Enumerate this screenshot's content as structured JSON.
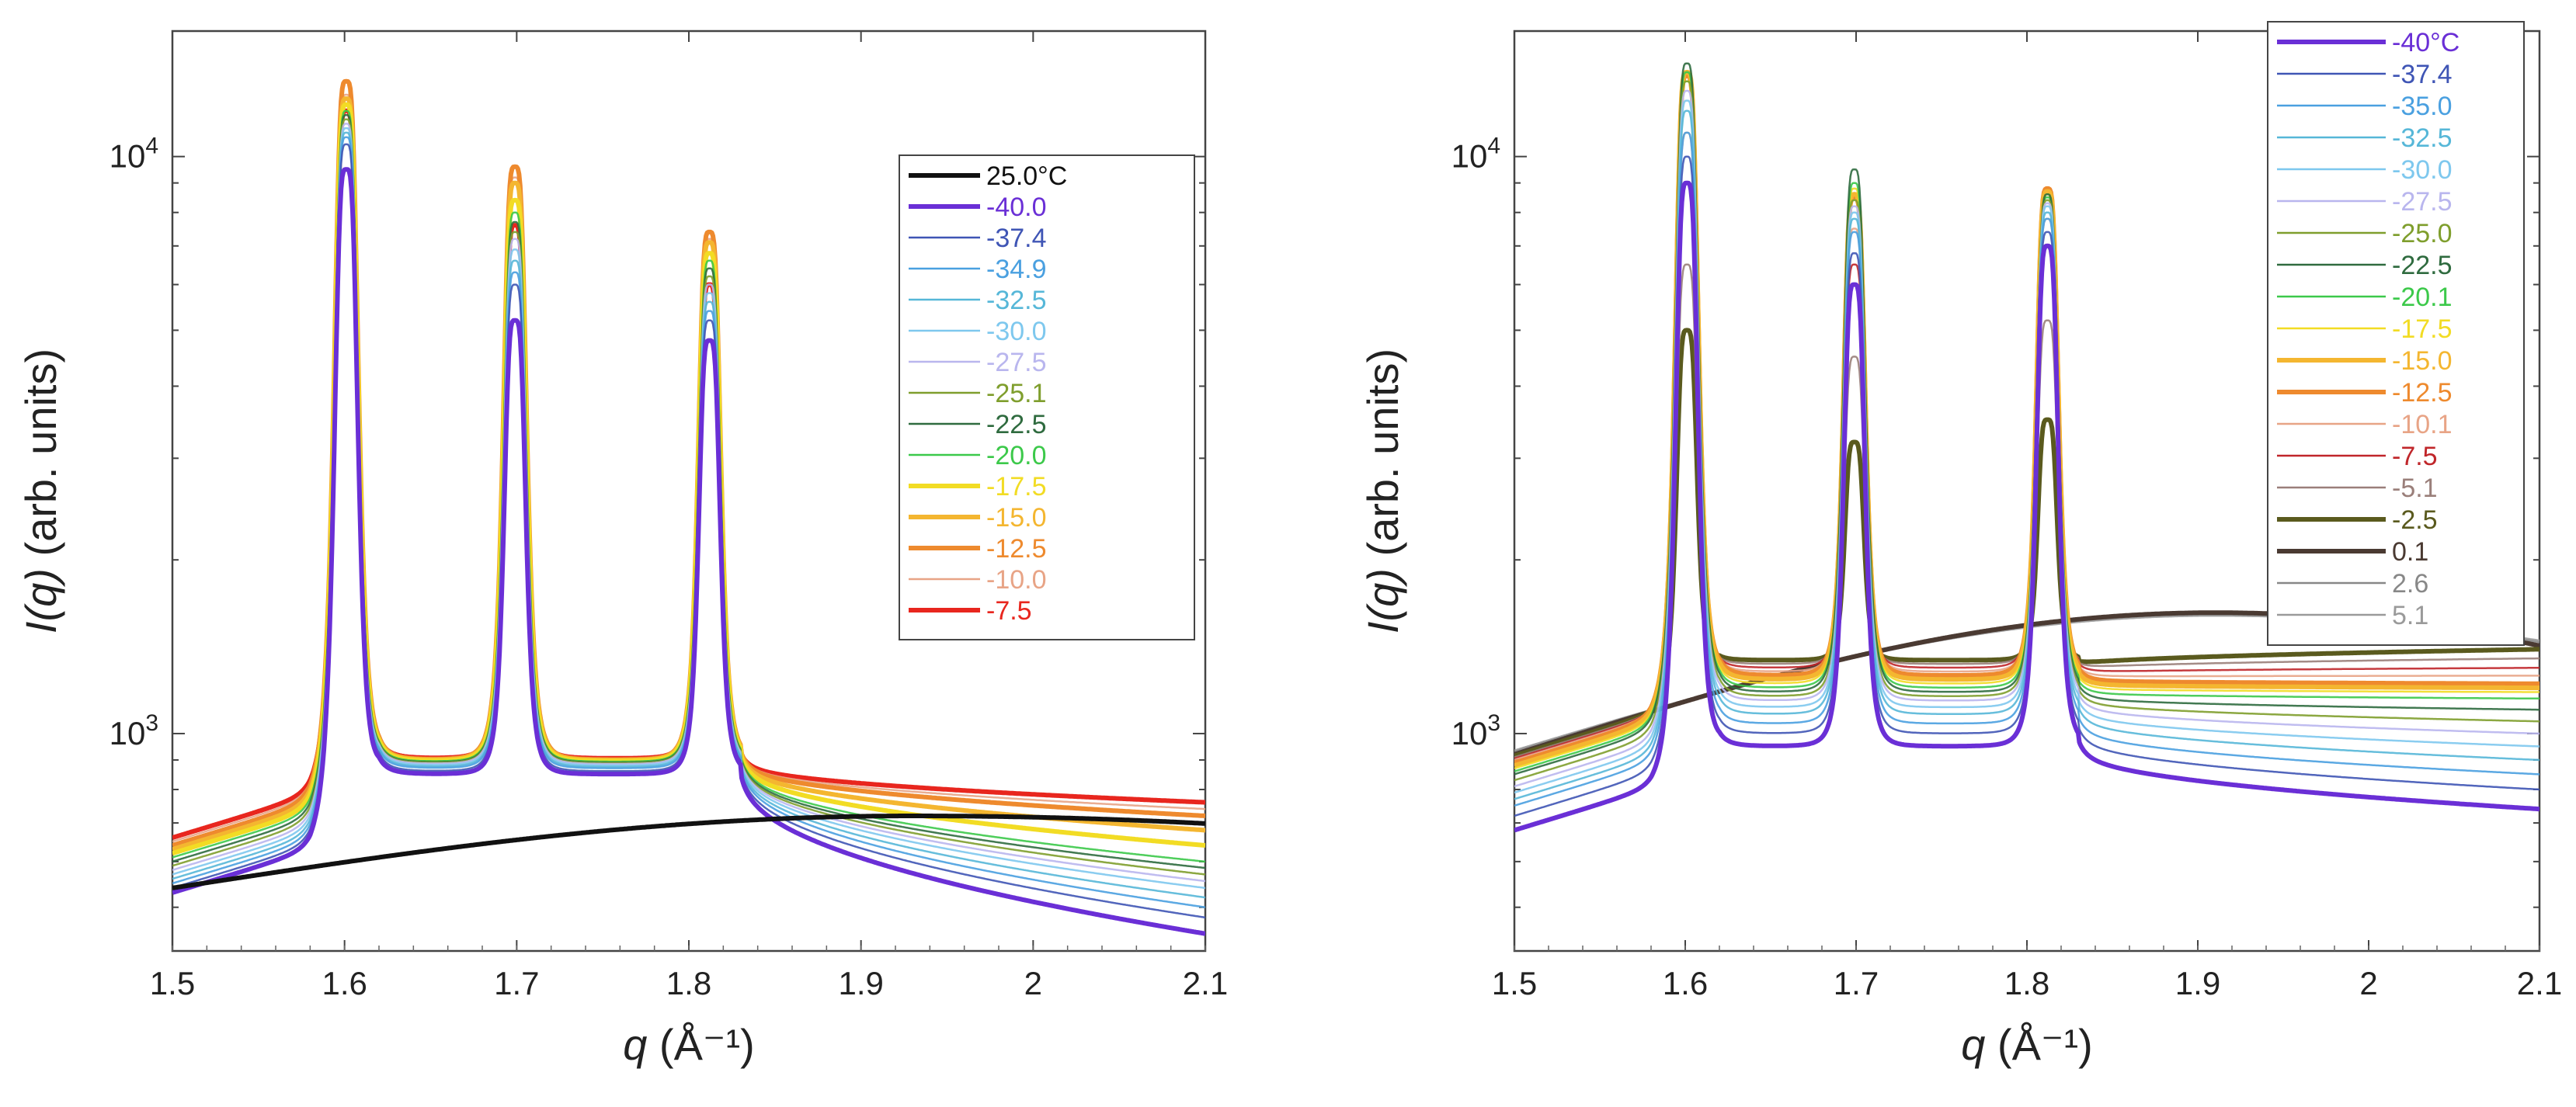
{
  "chart_data": [
    {
      "type": "line",
      "panel": "left",
      "xlabel_symbol": "q",
      "xlabel_unit": "(Å⁻¹)",
      "ylabel_symbol": "I(q)",
      "ylabel_unit": "(arb. units)",
      "yscale": "log",
      "xlim": [
        1.5,
        2.1
      ],
      "ylim": [
        420,
        16500
      ],
      "x_ticks": [
        "1.5",
        "1.6",
        "1.7",
        "1.8",
        "1.9",
        "2",
        "2.1"
      ],
      "y_tick_labels": [
        {
          "base": "10",
          "exp": "3"
        },
        {
          "base": "10",
          "exp": "4"
        }
      ],
      "y_tick_values": [
        1000,
        10000
      ],
      "peaks": [
        1.601,
        1.699,
        1.812
      ],
      "legend": "right",
      "series": [
        {
          "name": "25.0°C",
          "color": "#111111",
          "bold": true,
          "type": "amorphous",
          "low": 540,
          "high": 720,
          "peak_pos": 1.93
        },
        {
          "name": "-40.0",
          "color": "#6a2fd6",
          "bold": true,
          "type": "crystal",
          "base_left": 530,
          "base_mid": 850,
          "base_right": 450,
          "peak_heights": [
            9500,
            5200,
            4800
          ]
        },
        {
          "name": "-37.4",
          "color": "#3f55b5",
          "bold": false,
          "type": "crystal",
          "base_left": 540,
          "base_mid": 860,
          "base_right": 480,
          "peak_heights": [
            10500,
            6000,
            5200
          ]
        },
        {
          "name": "-34.9",
          "color": "#4aa0e0",
          "bold": false,
          "type": "crystal",
          "base_left": 550,
          "base_mid": 870,
          "base_right": 500,
          "peak_heights": [
            10800,
            6300,
            5400
          ]
        },
        {
          "name": "-32.5",
          "color": "#56b7d8",
          "bold": false,
          "type": "crystal",
          "base_left": 560,
          "base_mid": 875,
          "base_right": 520,
          "peak_heights": [
            11000,
            6600,
            5600
          ]
        },
        {
          "name": "-30.0",
          "color": "#7ec8ee",
          "bold": false,
          "type": "crystal",
          "base_left": 570,
          "base_mid": 880,
          "base_right": 540,
          "peak_heights": [
            11200,
            6900,
            5800
          ]
        },
        {
          "name": "-27.5",
          "color": "#b9b6ee",
          "bold": false,
          "type": "crystal",
          "base_left": 580,
          "base_mid": 885,
          "base_right": 555,
          "peak_heights": [
            11400,
            7200,
            6000
          ]
        },
        {
          "name": "-25.1",
          "color": "#7f9e2d",
          "bold": false,
          "type": "crystal",
          "base_left": 590,
          "base_mid": 888,
          "base_right": 570,
          "peak_heights": [
            11600,
            7400,
            6200
          ]
        },
        {
          "name": "-22.5",
          "color": "#2f6b3f",
          "bold": false,
          "type": "crystal",
          "base_left": 600,
          "base_mid": 890,
          "base_right": 585,
          "peak_heights": [
            11800,
            7700,
            6400
          ]
        },
        {
          "name": "-20.0",
          "color": "#3cc94a",
          "bold": false,
          "type": "crystal",
          "base_left": 610,
          "base_mid": 893,
          "base_right": 600,
          "peak_heights": [
            12000,
            8000,
            6600
          ]
        },
        {
          "name": "-17.5",
          "color": "#f2dc24",
          "bold": true,
          "type": "crystal",
          "base_left": 620,
          "base_mid": 895,
          "base_right": 640,
          "peak_heights": [
            12300,
            8400,
            6800
          ]
        },
        {
          "name": "-15.0",
          "color": "#f4b630",
          "bold": true,
          "type": "crystal",
          "base_left": 630,
          "base_mid": 898,
          "base_right": 680,
          "peak_heights": [
            12600,
            9000,
            7100
          ]
        },
        {
          "name": "-12.5",
          "color": "#ee8a2e",
          "bold": true,
          "type": "crystal",
          "base_left": 640,
          "base_mid": 900,
          "base_right": 720,
          "peak_heights": [
            13500,
            9600,
            7400
          ]
        },
        {
          "name": "-10.0",
          "color": "#e8a486",
          "bold": false,
          "type": "crystal",
          "base_left": 650,
          "base_mid": 902,
          "base_right": 740,
          "peak_heights": [
            12800,
            9200,
            7200
          ]
        },
        {
          "name": "-7.5",
          "color": "#e8261e",
          "bold": true,
          "type": "crystal",
          "base_left": 660,
          "base_mid": 905,
          "base_right": 760,
          "peak_heights": [
            12000,
            7600,
            6000
          ]
        }
      ]
    },
    {
      "type": "line",
      "panel": "right",
      "xlabel_symbol": "q",
      "xlabel_unit": "(Å⁻¹)",
      "ylabel_symbol": "I(q)",
      "ylabel_unit": "(arb. units)",
      "yscale": "log",
      "xlim": [
        1.5,
        2.1
      ],
      "ylim": [
        420,
        16500
      ],
      "x_ticks": [
        "1.5",
        "1.6",
        "1.7",
        "1.8",
        "1.9",
        "2",
        "2.1"
      ],
      "y_tick_labels": [
        {
          "base": "10",
          "exp": "3"
        },
        {
          "base": "10",
          "exp": "4"
        }
      ],
      "y_tick_values": [
        1000,
        10000
      ],
      "peaks": [
        1.601,
        1.699,
        1.812
      ],
      "legend": "top-right",
      "series": [
        {
          "name": "-40°C",
          "color": "#6a2fd6",
          "bold": true,
          "type": "crystal",
          "base_left": 680,
          "base_mid": 950,
          "base_right": 740,
          "peak_heights": [
            9000,
            6000,
            7000
          ]
        },
        {
          "name": "-37.4",
          "color": "#3f55b5",
          "bold": false,
          "type": "crystal",
          "base_left": 720,
          "base_mid": 1000,
          "base_right": 800,
          "peak_heights": [
            10000,
            6800,
            7400
          ]
        },
        {
          "name": "-35.0",
          "color": "#4aa0e0",
          "bold": false,
          "type": "crystal",
          "base_left": 750,
          "base_mid": 1040,
          "base_right": 850,
          "peak_heights": [
            11000,
            7400,
            7800
          ]
        },
        {
          "name": "-32.5",
          "color": "#56b7d8",
          "bold": false,
          "type": "crystal",
          "base_left": 770,
          "base_mid": 1080,
          "base_right": 900,
          "peak_heights": [
            12000,
            7800,
            8000
          ]
        },
        {
          "name": "-30.0",
          "color": "#7ec8ee",
          "bold": false,
          "type": "crystal",
          "base_left": 790,
          "base_mid": 1110,
          "base_right": 950,
          "peak_heights": [
            12500,
            8000,
            8200
          ]
        },
        {
          "name": "-27.5",
          "color": "#b9b6ee",
          "bold": false,
          "type": "crystal",
          "base_left": 810,
          "base_mid": 1140,
          "base_right": 1000,
          "peak_heights": [
            13000,
            8200,
            8300
          ]
        },
        {
          "name": "-25.0",
          "color": "#7f9e2d",
          "bold": false,
          "type": "crystal",
          "base_left": 830,
          "base_mid": 1160,
          "base_right": 1050,
          "peak_heights": [
            13500,
            8400,
            8400
          ]
        },
        {
          "name": "-22.5",
          "color": "#2f6b3f",
          "bold": false,
          "type": "crystal",
          "base_left": 850,
          "base_mid": 1180,
          "base_right": 1100,
          "peak_heights": [
            14500,
            9500,
            8600
          ]
        },
        {
          "name": "-20.1",
          "color": "#3cc94a",
          "bold": false,
          "type": "crystal",
          "base_left": 860,
          "base_mid": 1200,
          "base_right": 1150,
          "peak_heights": [
            14000,
            9000,
            8500
          ]
        },
        {
          "name": "-17.5",
          "color": "#f2dc24",
          "bold": false,
          "type": "crystal",
          "base_left": 870,
          "base_mid": 1220,
          "base_right": 1180,
          "peak_heights": [
            13500,
            8800,
            8600
          ]
        },
        {
          "name": "-15.0",
          "color": "#f4b630",
          "bold": true,
          "type": "crystal",
          "base_left": 880,
          "base_mid": 1240,
          "base_right": 1200,
          "peak_heights": [
            14000,
            8600,
            8700
          ]
        },
        {
          "name": "-12.5",
          "color": "#ee8a2e",
          "bold": true,
          "type": "crystal",
          "base_left": 890,
          "base_mid": 1260,
          "base_right": 1220,
          "peak_heights": [
            13800,
            8500,
            8800
          ]
        },
        {
          "name": "-10.1",
          "color": "#e8a486",
          "bold": false,
          "type": "crystal",
          "base_left": 900,
          "base_mid": 1280,
          "base_right": 1260,
          "peak_heights": [
            11000,
            7500,
            7800
          ]
        },
        {
          "name": "-7.5",
          "color": "#c0262a",
          "bold": false,
          "type": "crystal",
          "base_left": 905,
          "base_mid": 1300,
          "base_right": 1300,
          "peak_heights": [
            9000,
            6500,
            7000
          ]
        },
        {
          "name": "-5.1",
          "color": "#9a7f7a",
          "bold": false,
          "type": "crystal",
          "base_left": 910,
          "base_mid": 1320,
          "base_right": 1350,
          "peak_heights": [
            6500,
            4500,
            5200
          ]
        },
        {
          "name": "-2.5",
          "color": "#5a5a1e",
          "bold": true,
          "type": "crystal",
          "base_left": 915,
          "base_mid": 1340,
          "base_right": 1400,
          "peak_heights": [
            5000,
            3200,
            3500
          ]
        },
        {
          "name": "0.1",
          "color": "#4a3a32",
          "bold": true,
          "type": "amorphous",
          "low": 920,
          "high": 1620,
          "end": 1420,
          "peak_pos": 1.91
        },
        {
          "name": "2.6",
          "color": "#888888",
          "bold": false,
          "type": "amorphous",
          "low": 930,
          "high": 1610,
          "end": 1440,
          "peak_pos": 1.91
        },
        {
          "name": "5.1",
          "color": "#9a9a9a",
          "bold": false,
          "type": "amorphous",
          "low": 935,
          "high": 1600,
          "end": 1450,
          "peak_pos": 1.91
        }
      ]
    }
  ]
}
